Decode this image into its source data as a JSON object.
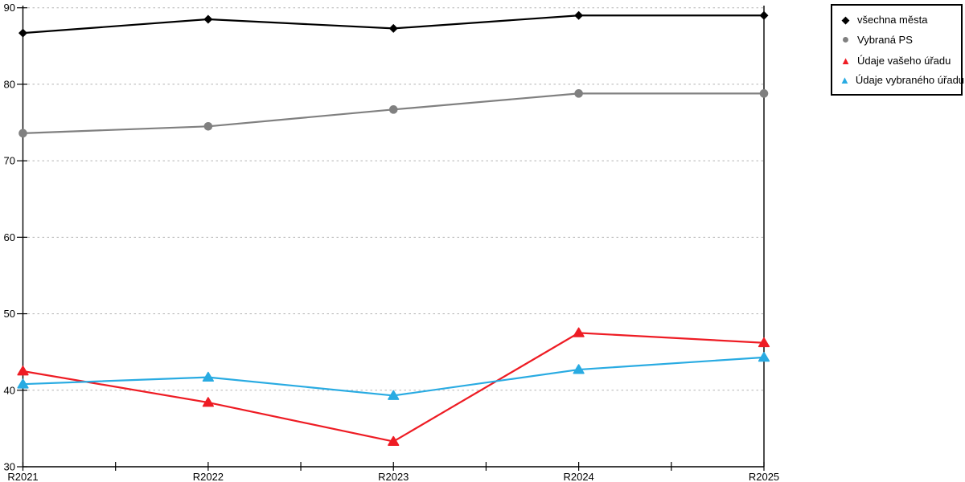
{
  "chart_data": {
    "type": "line",
    "title": "",
    "xlabel": "",
    "ylabel": "",
    "categories": [
      "R2021",
      "R2022",
      "R2023",
      "R2024",
      "R2025"
    ],
    "series": [
      {
        "name": "všechna města",
        "color": "#000000",
        "marker": "diamond",
        "values": [
          86.7,
          88.5,
          87.3,
          89.0,
          89.0
        ]
      },
      {
        "name": "Vybraná PS",
        "color": "#808080",
        "marker": "circle",
        "values": [
          73.6,
          74.5,
          76.7,
          78.8,
          78.8
        ]
      },
      {
        "name": "Údaje vašeho úřadu",
        "color": "#ee1c24",
        "marker": "triangle",
        "values": [
          42.5,
          38.4,
          33.3,
          47.5,
          46.2
        ]
      },
      {
        "name": "Údaje vybraného úřadu",
        "color": "#29abe2",
        "marker": "triangle",
        "values": [
          40.8,
          41.7,
          39.3,
          42.7,
          44.3
        ]
      }
    ],
    "ylim": [
      30,
      90
    ],
    "ytick_labels": [
      "30",
      "40",
      "50",
      "60",
      "70",
      "80",
      "90"
    ],
    "xtick_labels": [
      "R2021",
      "R2022",
      "R2023",
      "R2024",
      "R2025"
    ],
    "grid": "horizontal dotted, minor x ticks at midpoints",
    "gridline_color": "#b3b3b3",
    "axis_color": "#000000",
    "legend_position": "top-right, outside plot, boxed",
    "vertical_line_at_category": "R2025"
  }
}
